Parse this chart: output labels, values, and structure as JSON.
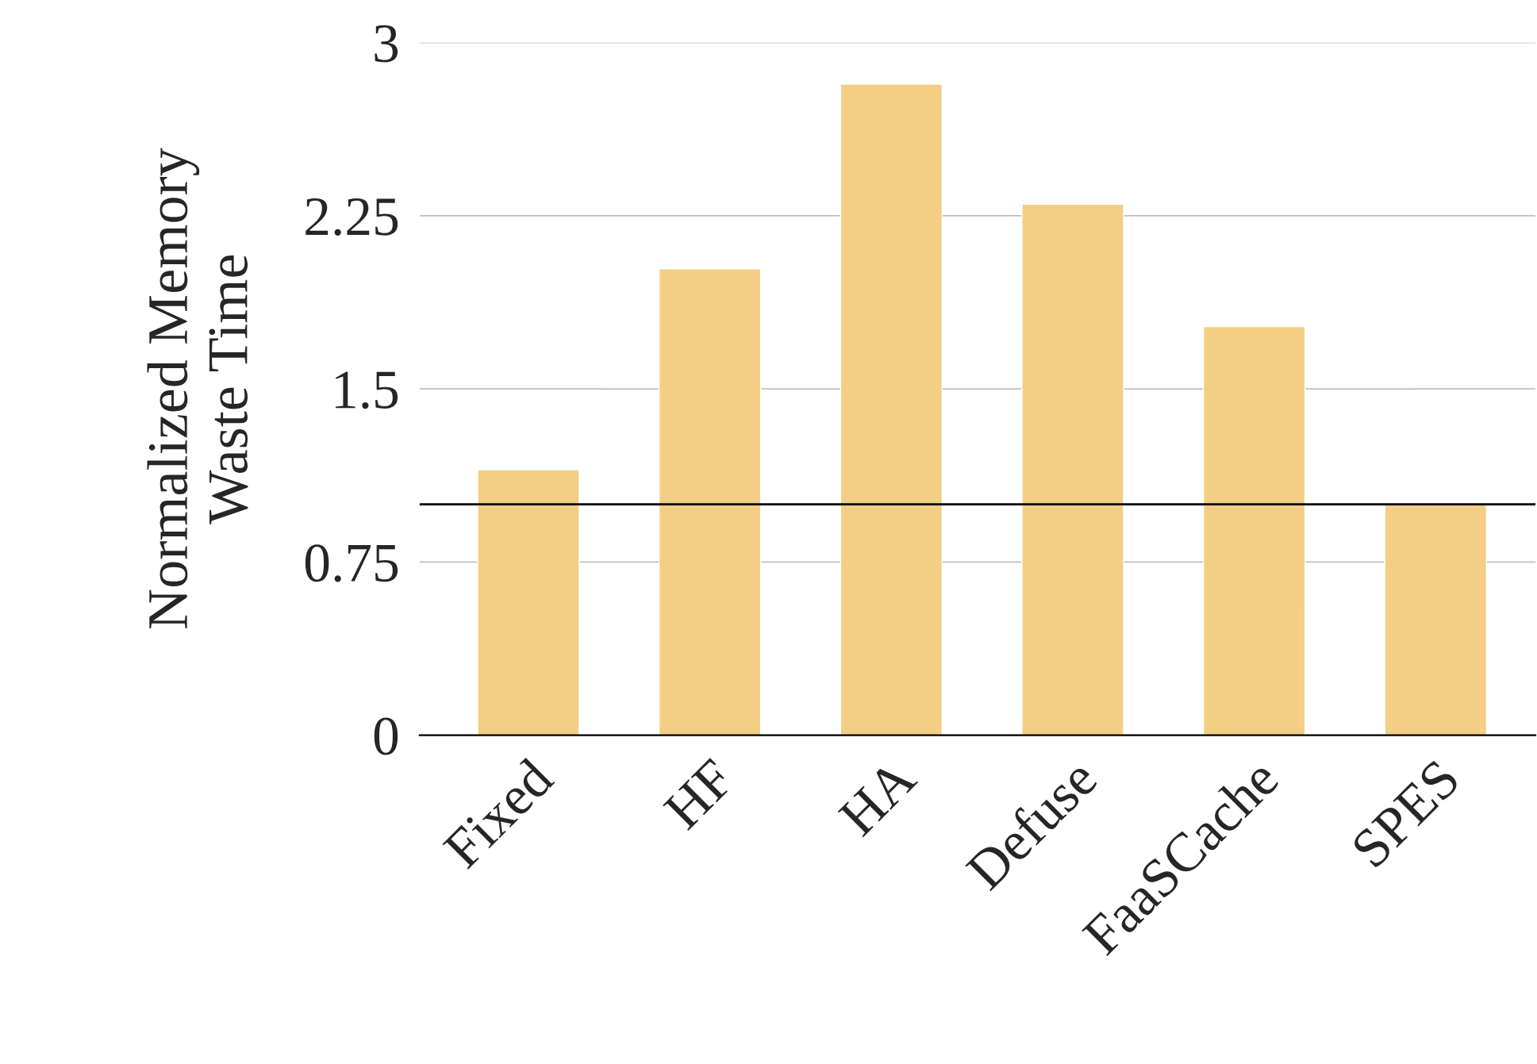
{
  "chart_data": {
    "type": "bar",
    "ylabel": "Normalized Memory\nWaste Time",
    "categories": [
      "Fixed",
      "HF",
      "HA",
      "Defuse",
      "FaaSCache",
      "SPES"
    ],
    "values": [
      1.15,
      2.02,
      2.82,
      2.3,
      1.77,
      1.0
    ],
    "color": "#f2cf85",
    "ylim": [
      0,
      3
    ],
    "yticks": [
      0,
      0.75,
      1.5,
      2.25,
      3
    ],
    "grid": "y",
    "ref_lines": [
      {
        "axis": "y",
        "value": 1,
        "color": "#000000"
      }
    ]
  }
}
